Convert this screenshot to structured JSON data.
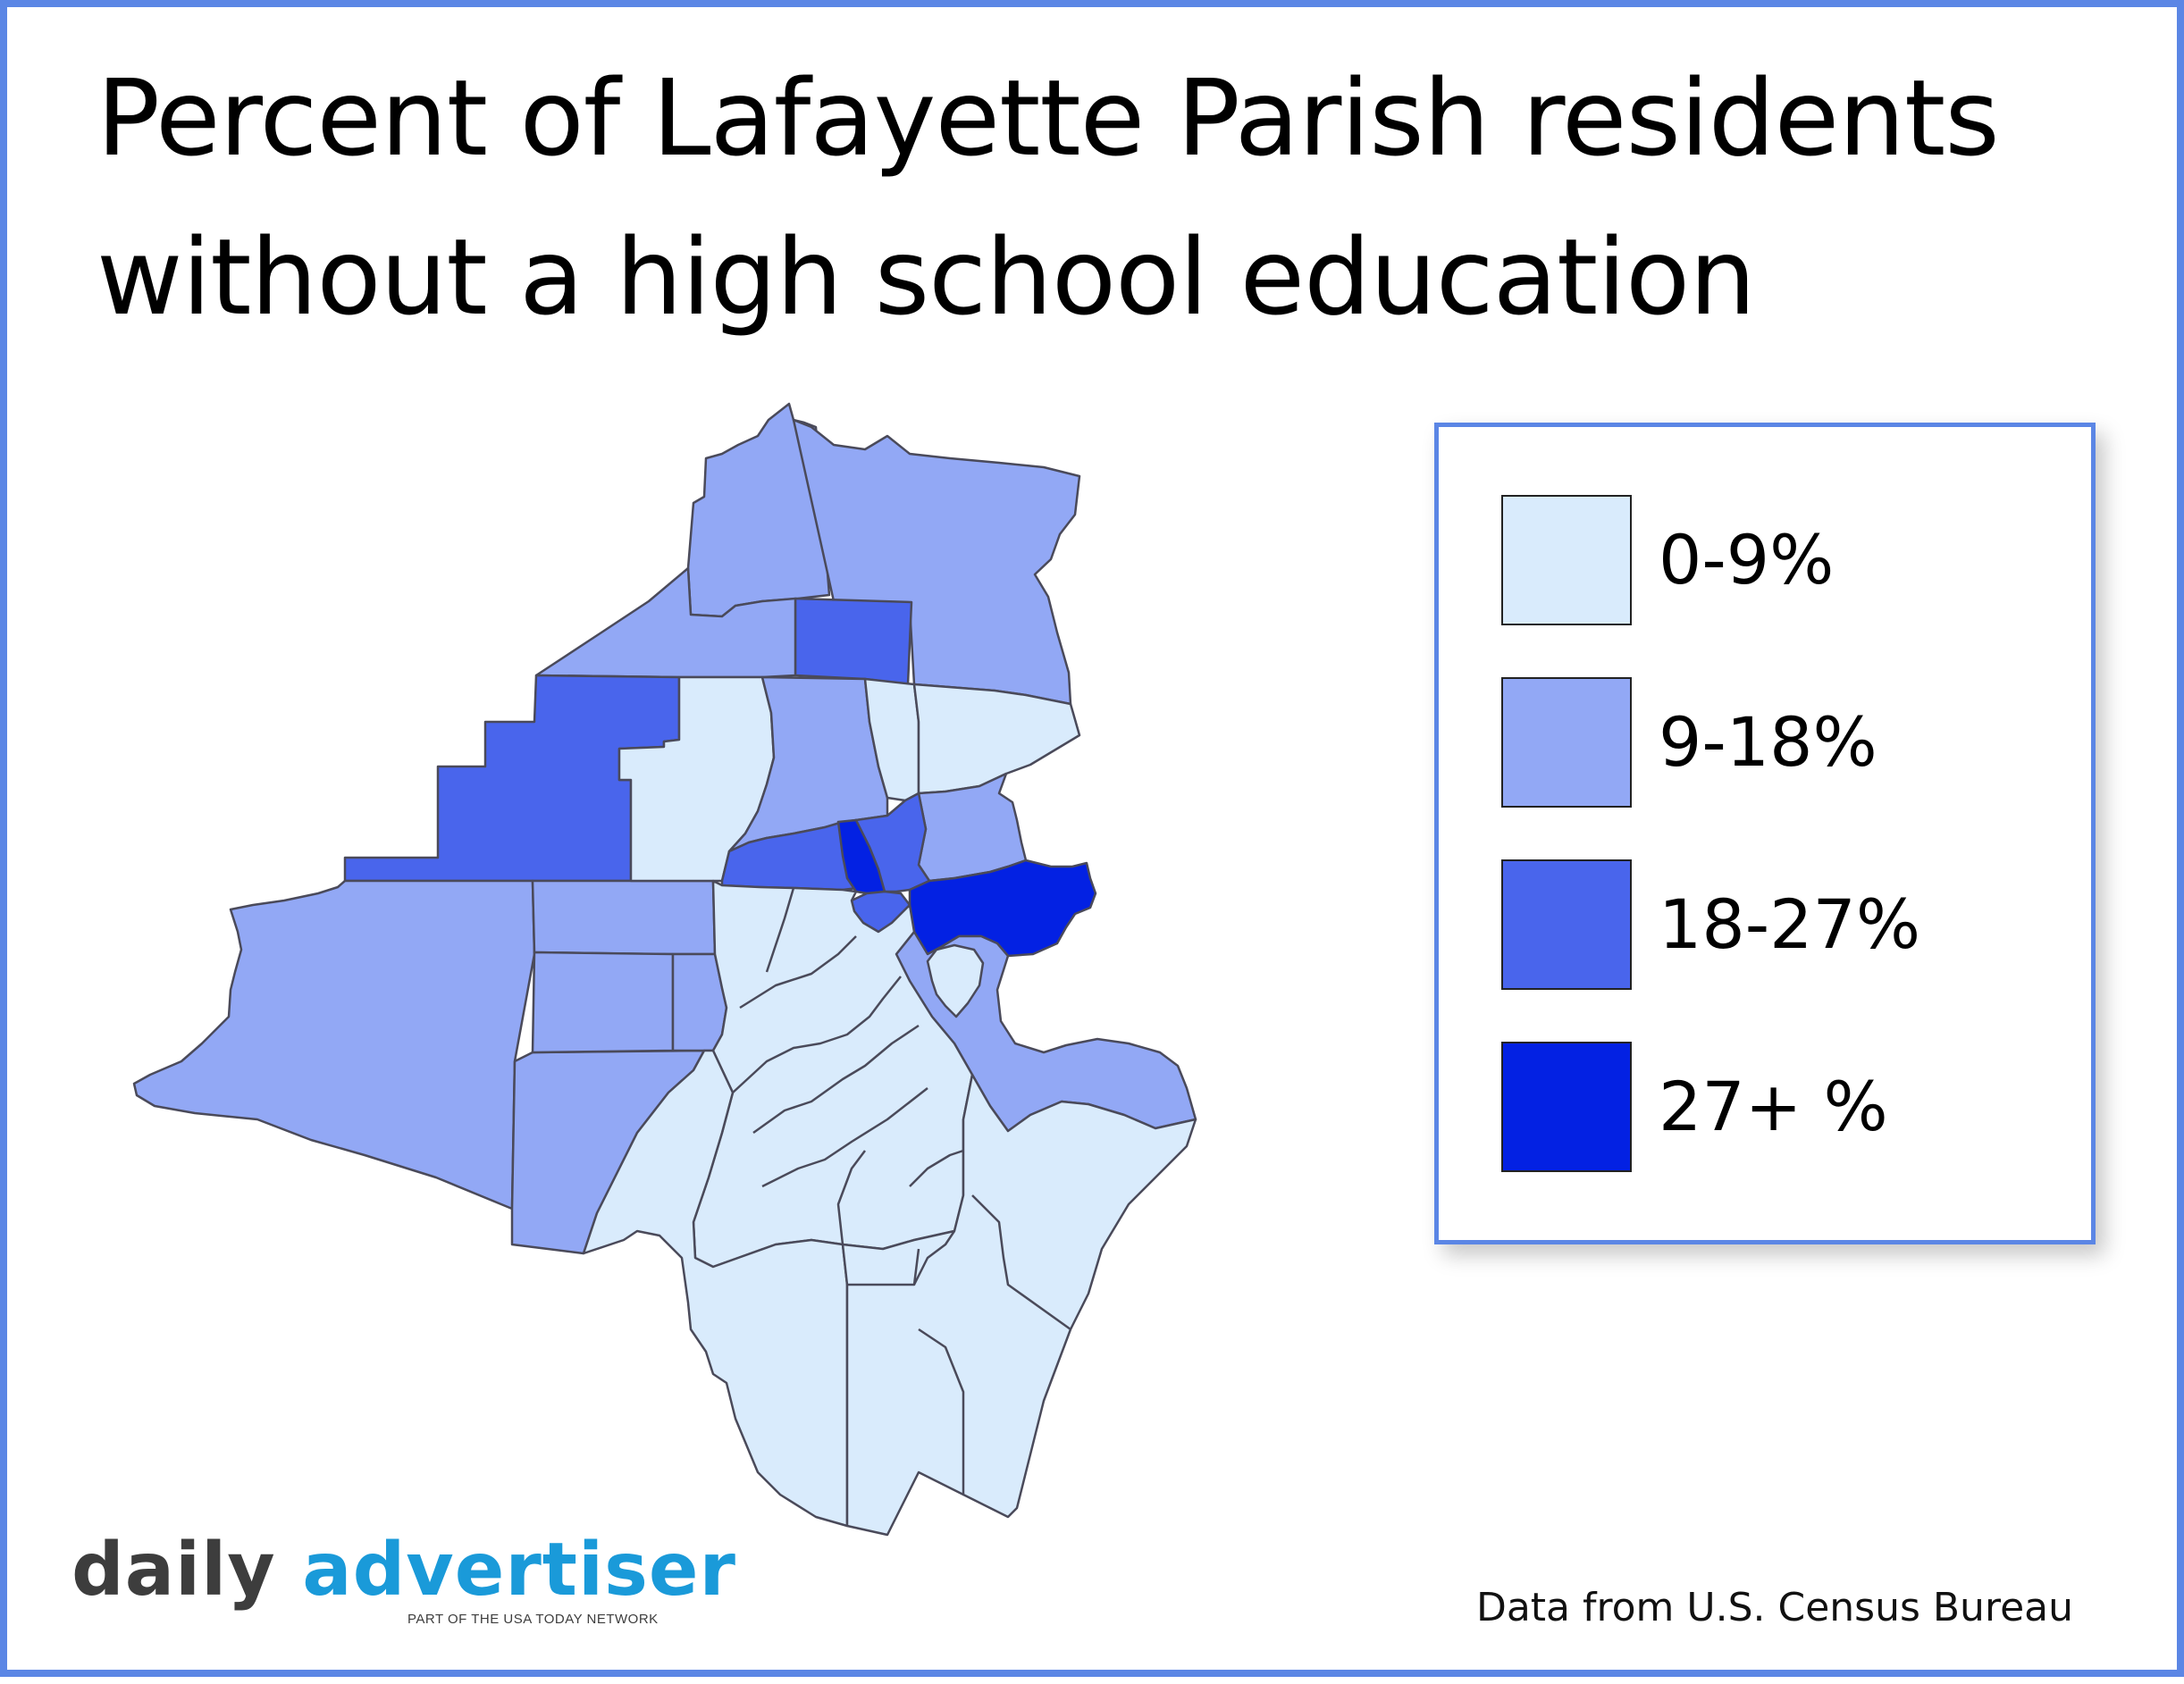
{
  "title": {
    "line1": "Percent of Lafayette Parish residents",
    "line2": "without a high school education"
  },
  "legend": {
    "items": [
      {
        "label": "0-9%",
        "color": "#d9ebfc"
      },
      {
        "label": "9-18%",
        "color": "#92a8f5"
      },
      {
        "label": "18-27%",
        "color": "#4965ec"
      },
      {
        "label": "27+ %",
        "color": "#0321e3"
      }
    ]
  },
  "map": {
    "border_color": "#4a4a5a",
    "regions": [
      {
        "name": "north-tract",
        "class": 1
      },
      {
        "name": "northeast-tract",
        "class": 1
      },
      {
        "name": "north-central-tract",
        "class": 2
      },
      {
        "name": "northwest-tract",
        "class": 1
      },
      {
        "name": "west-staircase-tract",
        "class": 2
      },
      {
        "name": "west-tract",
        "class": 1
      },
      {
        "name": "southwest-strip-tract",
        "class": 1
      },
      {
        "name": "west-central-tract",
        "class": 1
      },
      {
        "name": "west-central-small-tract",
        "class": 1
      },
      {
        "name": "west-inner-tract",
        "class": 1
      },
      {
        "name": "central-north-tract",
        "class": 0
      },
      {
        "name": "central-tract",
        "class": 1
      },
      {
        "name": "north-center-strip-tract",
        "class": 0
      },
      {
        "name": "northeast-light-tract",
        "class": 0
      },
      {
        "name": "east-tract",
        "class": 1
      },
      {
        "name": "central-band-tract",
        "class": 2
      },
      {
        "name": "downtown-tract",
        "class": 3
      },
      {
        "name": "downtown-east-tract",
        "class": 2
      },
      {
        "name": "downtown-south-tract",
        "class": 2
      },
      {
        "name": "east-lobe-tract",
        "class": 3
      },
      {
        "name": "southeast-tract",
        "class": 1
      },
      {
        "name": "south-tract",
        "class": 0
      },
      {
        "name": "south-central-tract",
        "class": 0
      },
      {
        "name": "southeast-corner-tract",
        "class": 0
      },
      {
        "name": "small-island-tract",
        "class": 0
      }
    ]
  },
  "branding": {
    "logo_daily": "daily",
    "logo_advertiser": "advertiser",
    "logo_tagline": "PART OF THE USA TODAY NETWORK",
    "logo_daily_color": "#3d3d3d",
    "logo_advertiser_color": "#1a9ad9"
  },
  "source": "Data from U.S. Census Bureau"
}
